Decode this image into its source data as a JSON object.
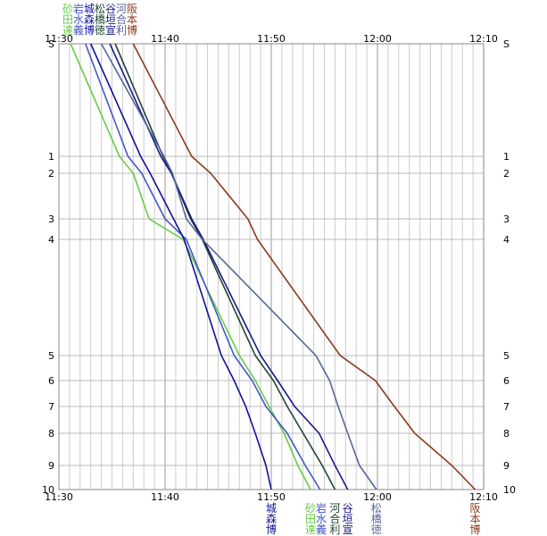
{
  "chart_data": {
    "type": "line",
    "x_unit": "time",
    "xlim": [
      "11:30",
      "12:10"
    ],
    "x_ticks": [
      "11:30",
      "11:40",
      "11:50",
      "12:00",
      "12:10"
    ],
    "y_ticks": [
      {
        "label": "S",
        "value": 0
      },
      {
        "label": "1",
        "value": 1
      },
      {
        "label": "2",
        "value": 2
      },
      {
        "label": "3",
        "value": 3
      },
      {
        "label": "4",
        "value": 4
      },
      {
        "label": "5",
        "value": 5
      },
      {
        "label": "6",
        "value": 6
      },
      {
        "label": "7",
        "value": 7
      },
      {
        "label": "8",
        "value": 8
      },
      {
        "label": "9",
        "value": 9
      },
      {
        "label": "10",
        "value": 10
      }
    ],
    "grid": true,
    "series": [
      {
        "color": "#66cc44",
        "top": [
          "砂",
          "田",
          "達"
        ],
        "bottom": [
          "砂",
          "田",
          "達"
        ],
        "points": [
          [
            "11:31.1",
            0
          ],
          [
            "11:35.7",
            1
          ],
          [
            "11:37.0",
            2
          ],
          [
            "11:38.5",
            3
          ],
          [
            "11:41.7",
            4
          ],
          [
            "11:47.0",
            5
          ],
          [
            "11:48.5",
            6
          ],
          [
            "11:49.8",
            7
          ],
          [
            "11:51.2",
            8
          ],
          [
            "11:52.5",
            9
          ],
          [
            "11:53.7",
            10
          ]
        ]
      },
      {
        "color": "#4455cc",
        "top": [
          "岩",
          "水",
          "義"
        ],
        "bottom": [
          "岩",
          "水",
          "義"
        ],
        "points": [
          [
            "11:32.5",
            0
          ],
          [
            "11:36.5",
            1
          ],
          [
            "11:37.8",
            2
          ],
          [
            "11:40.0",
            3
          ],
          [
            "11:42.0",
            4
          ],
          [
            "11:46.5",
            5
          ],
          [
            "11:48.2",
            6
          ],
          [
            "11:49.5",
            7
          ],
          [
            "11:51.5",
            8
          ],
          [
            "11:53.2",
            9
          ],
          [
            "11:54.6",
            10
          ]
        ]
      },
      {
        "color": "#111199",
        "top": [
          "城",
          "森",
          "博"
        ],
        "bottom": [
          "城",
          "森",
          "博"
        ],
        "points": [
          [
            "11:33.0",
            0
          ],
          [
            "11:37.7",
            1
          ],
          [
            "11:38.6",
            2
          ],
          [
            "11:40.8",
            3
          ],
          [
            "11:41.8",
            4
          ],
          [
            "11:45.3",
            5
          ],
          [
            "11:46.5",
            6
          ],
          [
            "11:47.6",
            7
          ],
          [
            "11:48.5",
            8
          ],
          [
            "11:49.5",
            9
          ],
          [
            "11:50.0",
            10
          ]
        ]
      },
      {
        "color": "#1f4433",
        "top": [
          "松",
          "橋",
          "徳"
        ],
        "bottom": [
          "河",
          "合",
          "利"
        ],
        "points": [
          [
            "11:35.3",
            0
          ],
          [
            "11:39.8",
            1
          ],
          [
            "11:40.6",
            2
          ],
          [
            "11:42.4",
            3
          ],
          [
            "11:43.5",
            4
          ],
          [
            "11:48.5",
            5
          ],
          [
            "11:50.2",
            6
          ],
          [
            "11:51.5",
            7
          ],
          [
            "11:53.0",
            8
          ],
          [
            "11:54.8",
            9
          ],
          [
            "11:56.0",
            10
          ]
        ]
      },
      {
        "color": "#1a1a88",
        "top": [
          "谷",
          "垣",
          "宣"
        ],
        "bottom": [
          "谷",
          "垣",
          "宣"
        ],
        "points": [
          [
            "11:34.8",
            0
          ],
          [
            "11:39.6",
            1
          ],
          [
            "11:40.6",
            2
          ],
          [
            "11:42.5",
            3
          ],
          [
            "11:43.6",
            4
          ],
          [
            "11:49.0",
            5
          ],
          [
            "11:50.6",
            6
          ],
          [
            "11:52.2",
            7
          ],
          [
            "11:54.5",
            8
          ],
          [
            "11:56.0",
            9
          ],
          [
            "11:57.2",
            10
          ]
        ]
      },
      {
        "color": "#556699",
        "top": [
          "河",
          "合",
          "利"
        ],
        "bottom": [
          "松",
          "橋",
          "徳"
        ],
        "points": [
          [
            "11:34.0",
            0
          ],
          [
            "11:39.9",
            1
          ],
          [
            "11:40.7",
            2
          ],
          [
            "11:42.0",
            3
          ],
          [
            "11:43.5",
            4
          ],
          [
            "11:54.2",
            5
          ],
          [
            "11:55.5",
            6
          ],
          [
            "11:56.3",
            7
          ],
          [
            "11:57.2",
            8
          ],
          [
            "11:58.3",
            9
          ],
          [
            "11:59.9",
            10
          ]
        ]
      },
      {
        "color": "#8a3a1e",
        "top": [
          "阪",
          "本",
          "博"
        ],
        "bottom": [
          "阪",
          "本",
          "博"
        ],
        "points": [
          [
            "11:37.0",
            0
          ],
          [
            "11:42.5",
            1
          ],
          [
            "11:44.3",
            2
          ],
          [
            "11:47.8",
            3
          ],
          [
            "11:48.7",
            4
          ],
          [
            "11:56.5",
            5
          ],
          [
            "11:59.8",
            6
          ],
          [
            "12:01.6",
            7
          ],
          [
            "12:03.5",
            8
          ],
          [
            "12:07.0",
            9
          ],
          [
            "12:09.2",
            10
          ]
        ]
      }
    ]
  }
}
